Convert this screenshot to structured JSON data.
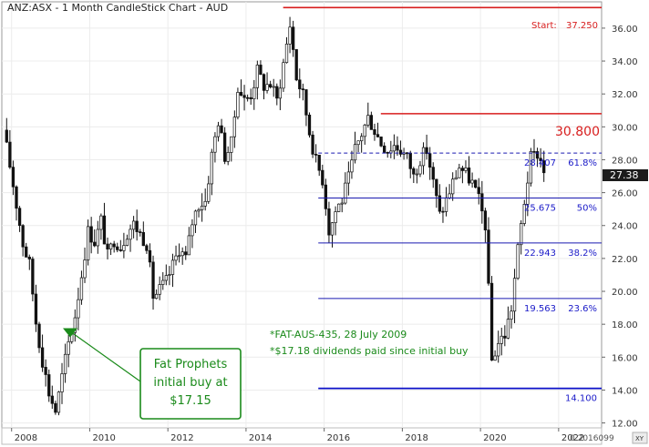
{
  "chart_data": {
    "type": "candlestick",
    "title": "ANZ:ASX - 1 Month CandleStick Chart - AUD",
    "x_ticks": [
      "2008",
      "2010",
      "2012",
      "2014",
      "2016",
      "2018",
      "2020",
      "2022"
    ],
    "y_ticks": [
      "12.00",
      "14.00",
      "16.00",
      "18.00",
      "20.00",
      "22.00",
      "24.00",
      "26.00",
      "28.00",
      "30.00",
      "32.00",
      "34.00",
      "36.00"
    ],
    "ylim": [
      11.7,
      37.6
    ],
    "xlim": [
      2007.75,
      2023.1
    ],
    "last_price": "27.38",
    "bottom_right_value": "0.2016099",
    "axis_button": "XY",
    "closes": [
      [
        2007.79,
        29.8
      ],
      [
        2007.96,
        27.6
      ],
      [
        2008.13,
        25.2
      ],
      [
        2008.29,
        22.9
      ],
      [
        2008.46,
        21.6
      ],
      [
        2008.63,
        18.0
      ],
      [
        2008.79,
        15.8
      ],
      [
        2008.96,
        13.8
      ],
      [
        2009.13,
        12.7
      ],
      [
        2009.29,
        14.8
      ],
      [
        2009.46,
        16.9
      ],
      [
        2009.63,
        18.6
      ],
      [
        2009.79,
        21.0
      ],
      [
        2009.96,
        23.7
      ],
      [
        2010.13,
        23.0
      ],
      [
        2010.29,
        24.3
      ],
      [
        2010.46,
        22.1
      ],
      [
        2010.63,
        23.2
      ],
      [
        2010.79,
        22.7
      ],
      [
        2010.96,
        23.6
      ],
      [
        2011.13,
        24.1
      ],
      [
        2011.29,
        23.5
      ],
      [
        2011.46,
        22.9
      ],
      [
        2011.63,
        19.6
      ],
      [
        2011.79,
        20.1
      ],
      [
        2011.96,
        20.6
      ],
      [
        2012.13,
        21.6
      ],
      [
        2012.29,
        22.6
      ],
      [
        2012.46,
        22.0
      ],
      [
        2012.63,
        24.3
      ],
      [
        2012.79,
        25.3
      ],
      [
        2012.96,
        25.5
      ],
      [
        2013.13,
        28.4
      ],
      [
        2013.29,
        30.4
      ],
      [
        2013.46,
        28.2
      ],
      [
        2013.63,
        29.0
      ],
      [
        2013.79,
        32.5
      ],
      [
        2013.96,
        31.6
      ],
      [
        2014.13,
        32.0
      ],
      [
        2014.29,
        33.4
      ],
      [
        2014.46,
        32.5
      ],
      [
        2014.63,
        32.6
      ],
      [
        2014.79,
        31.6
      ],
      [
        2014.96,
        33.9
      ],
      [
        2015.13,
        36.3
      ],
      [
        2015.29,
        33.0
      ],
      [
        2015.46,
        31.9
      ],
      [
        2015.63,
        29.6
      ],
      [
        2015.79,
        27.9
      ],
      [
        2015.96,
        26.8
      ],
      [
        2016.13,
        23.6
      ],
      [
        2016.29,
        24.9
      ],
      [
        2016.46,
        25.6
      ],
      [
        2016.63,
        26.9
      ],
      [
        2016.79,
        28.6
      ],
      [
        2016.96,
        29.6
      ],
      [
        2017.13,
        30.6
      ],
      [
        2017.29,
        29.8
      ],
      [
        2017.46,
        29.0
      ],
      [
        2017.63,
        28.6
      ],
      [
        2017.79,
        28.9
      ],
      [
        2017.96,
        28.6
      ],
      [
        2018.13,
        28.1
      ],
      [
        2018.29,
        27.0
      ],
      [
        2018.46,
        28.1
      ],
      [
        2018.63,
        28.6
      ],
      [
        2018.79,
        26.6
      ],
      [
        2018.96,
        24.6
      ],
      [
        2019.13,
        25.6
      ],
      [
        2019.29,
        26.6
      ],
      [
        2019.46,
        27.6
      ],
      [
        2019.63,
        27.1
      ],
      [
        2019.79,
        26.6
      ],
      [
        2019.96,
        25.5
      ],
      [
        2020.13,
        24.0
      ],
      [
        2020.29,
        15.8
      ],
      [
        2020.46,
        16.9
      ],
      [
        2020.63,
        17.4
      ],
      [
        2020.79,
        19.0
      ],
      [
        2020.96,
        22.6
      ],
      [
        2021.13,
        25.6
      ],
      [
        2021.29,
        28.1
      ],
      [
        2021.46,
        28.4
      ],
      [
        2021.63,
        27.4
      ]
    ],
    "fib_levels": [
      {
        "value": 28.407,
        "label": "28.407",
        "pct": "61.8%"
      },
      {
        "value": 25.675,
        "label": "25.675",
        "pct": "50%"
      },
      {
        "value": 22.943,
        "label": "22.943",
        "pct": "38.2%"
      },
      {
        "value": 19.563,
        "label": "19.563",
        "pct": "23.6%"
      },
      {
        "value": 14.1,
        "label": "14.100",
        "pct": ""
      }
    ],
    "start_line": {
      "value": 37.25,
      "label": "Start:",
      "price": "37.250"
    },
    "resistance_line": {
      "value": 30.8,
      "label": "30.800"
    },
    "callout": {
      "lines": [
        "Fat Prophets",
        "initial buy at",
        "$17.15"
      ],
      "price": 17.15,
      "date": 2009.5
    },
    "notes": [
      "*FAT-AUS-435, 28 July 2009",
      "*$17.18 dividends paid since initial buy"
    ]
  }
}
